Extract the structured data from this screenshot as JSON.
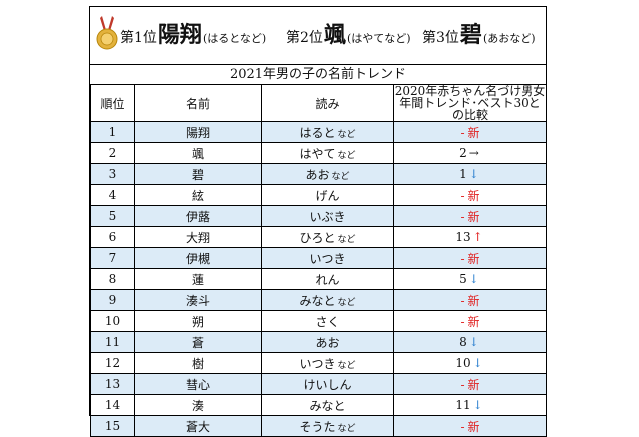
{
  "banner": {
    "rank1": {
      "label": "第1位",
      "name": "陽翔",
      "reading": "(はるとなど)"
    },
    "rank2": {
      "label": "第2位",
      "name": "颯",
      "reading": "(はやてなど)"
    },
    "rank3": {
      "label": "第3位",
      "name": "碧",
      "reading": "(あおなど)"
    }
  },
  "title": "2021年男の子の名前トレンド",
  "headers": {
    "rank": "順位",
    "name": "名前",
    "reading": "読み",
    "trend_line1": "2020年赤ちゃん名づけ男女",
    "trend_line2": "年間トレンド･ベスト30との比較"
  },
  "rows": [
    {
      "rank": "1",
      "name": "陽翔",
      "reading": "はると",
      "note": "など",
      "prev": "",
      "arrow": "",
      "new": "新"
    },
    {
      "rank": "2",
      "name": "颯",
      "reading": "はやて",
      "note": "など",
      "prev": "2",
      "arrow": "→",
      "new": ""
    },
    {
      "rank": "3",
      "name": "碧",
      "reading": "あお",
      "note": "など",
      "prev": "1",
      "arrow": "↓",
      "new": ""
    },
    {
      "rank": "4",
      "name": "絃",
      "reading": "げん",
      "note": "",
      "prev": "",
      "arrow": "",
      "new": "新"
    },
    {
      "rank": "5",
      "name": "伊蕗",
      "reading": "いぶき",
      "note": "",
      "prev": "",
      "arrow": "",
      "new": "新"
    },
    {
      "rank": "6",
      "name": "大翔",
      "reading": "ひろと",
      "note": "など",
      "prev": "13",
      "arrow": "↑",
      "new": ""
    },
    {
      "rank": "7",
      "name": "伊槻",
      "reading": "いつき",
      "note": "",
      "prev": "",
      "arrow": "",
      "new": "新"
    },
    {
      "rank": "8",
      "name": "蓮",
      "reading": "れん",
      "note": "",
      "prev": "5",
      "arrow": "↓",
      "new": ""
    },
    {
      "rank": "9",
      "name": "湊斗",
      "reading": "みなと",
      "note": "など",
      "prev": "",
      "arrow": "",
      "new": "新"
    },
    {
      "rank": "10",
      "name": "朔",
      "reading": "さく",
      "note": "",
      "prev": "",
      "arrow": "",
      "new": "新"
    },
    {
      "rank": "11",
      "name": "蒼",
      "reading": "あお",
      "note": "",
      "prev": "8",
      "arrow": "↓",
      "new": ""
    },
    {
      "rank": "12",
      "name": "樹",
      "reading": "いつき",
      "note": "など",
      "prev": "10",
      "arrow": "↓",
      "new": ""
    },
    {
      "rank": "13",
      "name": "彗心",
      "reading": "けいしん",
      "note": "",
      "prev": "",
      "arrow": "",
      "new": "新"
    },
    {
      "rank": "14",
      "name": "湊",
      "reading": "みなと",
      "note": "",
      "prev": "11",
      "arrow": "↓",
      "new": ""
    },
    {
      "rank": "15",
      "name": "蒼大",
      "reading": "そうた",
      "note": "など",
      "prev": "",
      "arrow": "",
      "new": "新"
    }
  ],
  "colors": {
    "alt_row": "#dcebf7",
    "up_arrow": "#e02020",
    "down_arrow": "#2a7fcf",
    "new": "#e02020"
  },
  "icons": {
    "medal": "gold-medal-icon"
  }
}
